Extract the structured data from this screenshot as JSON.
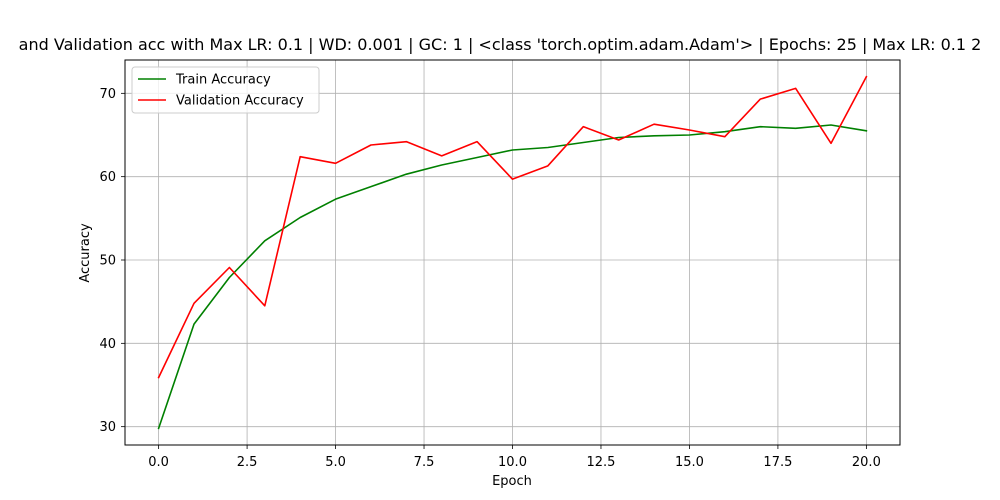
{
  "chart_data": {
    "type": "line",
    "title": "and Validation acc with Max LR: 0.1 | WD: 0.001 | GC: 1 | <class 'torch.optim.adam.Adam'> | Epochs: 25 | Max LR: 0.1 2",
    "xlabel": "Epoch",
    "ylabel": "Accuracy",
    "xlim": [
      -0.95,
      20.95
    ],
    "ylim": [
      27.8,
      74.0
    ],
    "xticks": [
      "0.0",
      "2.5",
      "5.0",
      "7.5",
      "10.0",
      "12.5",
      "15.0",
      "17.5",
      "20.0"
    ],
    "yticks": [
      "30",
      "40",
      "50",
      "60",
      "70"
    ],
    "grid": true,
    "legend_position": "top-left",
    "x": [
      0,
      1,
      2,
      3,
      4,
      5,
      6,
      7,
      8,
      9,
      10,
      11,
      12,
      13,
      14,
      15,
      16,
      17,
      18,
      19,
      20
    ],
    "series": [
      {
        "name": "Train Accuracy",
        "color": "#008000",
        "values": [
          29.8,
          42.3,
          47.9,
          52.3,
          55.1,
          57.3,
          58.8,
          60.3,
          61.4,
          62.3,
          63.2,
          63.5,
          64.1,
          64.7,
          64.9,
          65.0,
          65.4,
          66.0,
          65.8,
          66.2,
          65.5
        ]
      },
      {
        "name": "Validation Accuracy",
        "color": "#ff0000",
        "values": [
          35.9,
          44.8,
          49.1,
          44.5,
          62.4,
          61.6,
          63.8,
          64.2,
          62.5,
          64.2,
          59.7,
          61.3,
          66.0,
          64.4,
          66.3,
          65.6,
          64.8,
          69.3,
          70.6,
          64.0,
          72.0
        ]
      }
    ]
  }
}
